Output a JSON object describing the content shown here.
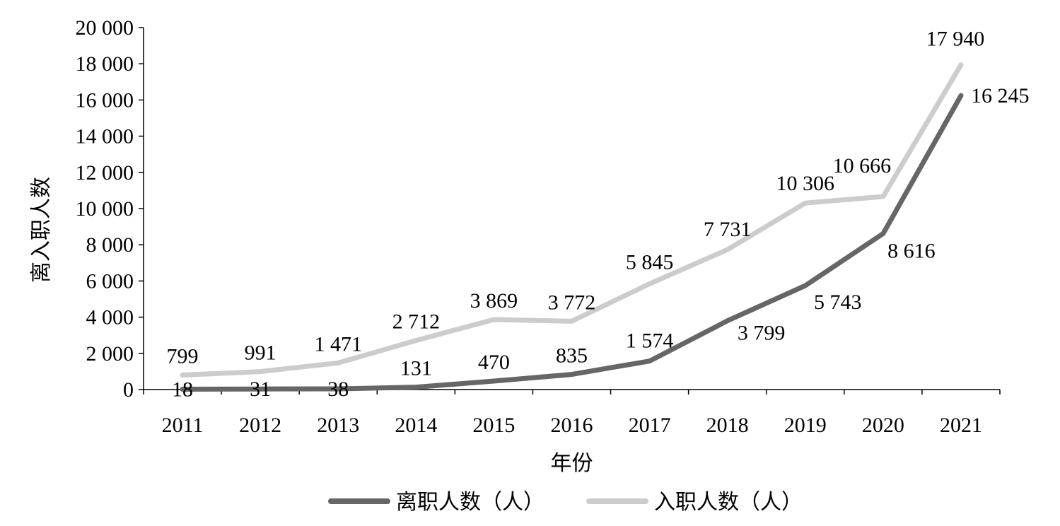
{
  "chart_data": {
    "type": "line",
    "categories": [
      "2011",
      "2012",
      "2013",
      "2014",
      "2015",
      "2016",
      "2017",
      "2018",
      "2019",
      "2020",
      "2021"
    ],
    "series": [
      {
        "name": "离职人数（人）",
        "color": "#666666",
        "values": [
          18,
          31,
          38,
          131,
          470,
          835,
          1574,
          3799,
          5743,
          8616,
          16245
        ],
        "labels": [
          "18",
          "31",
          "38",
          "131",
          "470",
          "835",
          "1 574",
          "3 799",
          "5 743",
          "8 616",
          "16 245"
        ]
      },
      {
        "name": "入职人数（人）",
        "color": "#cccccc",
        "values": [
          799,
          991,
          1471,
          2712,
          3869,
          3772,
          5845,
          7731,
          10306,
          10666,
          17940
        ],
        "labels": [
          "799",
          "991",
          "1 471",
          "2 712",
          "3 869",
          "3 772",
          "5 845",
          "7 731",
          "10 306",
          "10 666",
          "17 940"
        ]
      }
    ],
    "xlabel": "年份",
    "ylabel": "离入职人数",
    "ylim": [
      0,
      20000
    ],
    "yticks": [
      0,
      2000,
      4000,
      6000,
      8000,
      10000,
      12000,
      14000,
      16000,
      18000,
      20000
    ],
    "ytick_labels": [
      "0",
      "2 000",
      "4 000",
      "6 000",
      "8 000",
      "10 000",
      "12 000",
      "14 000",
      "16 000",
      "18 000",
      "20 000"
    ],
    "grid": false,
    "legend_position": "bottom"
  }
}
